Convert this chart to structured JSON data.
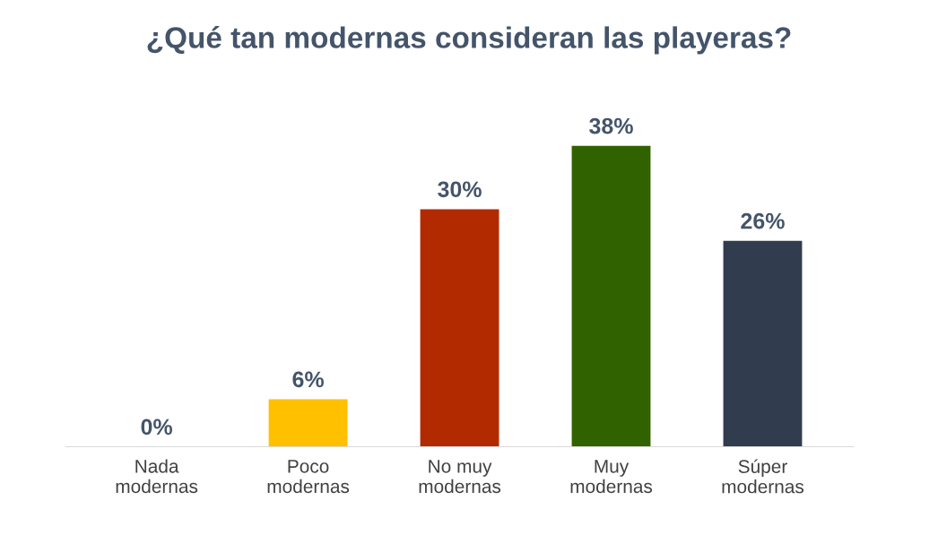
{
  "chart_data": {
    "type": "bar",
    "title": "¿Qué tan modernas consideran las playeras?",
    "categories": [
      "Nada\nmodernas",
      "Poco\nmodernas",
      "No muy\nmodernas",
      "Muy\nmodernas",
      "Súper\nmodernas"
    ],
    "values": [
      0,
      6,
      30,
      38,
      26
    ],
    "colors": [
      "#4e4a2a",
      "#ffc000",
      "#b22a00",
      "#316200",
      "#323c4f"
    ],
    "value_labels": [
      "0%",
      "6%",
      "30%",
      "38%",
      "26%"
    ],
    "grid": false,
    "legend": false
  }
}
